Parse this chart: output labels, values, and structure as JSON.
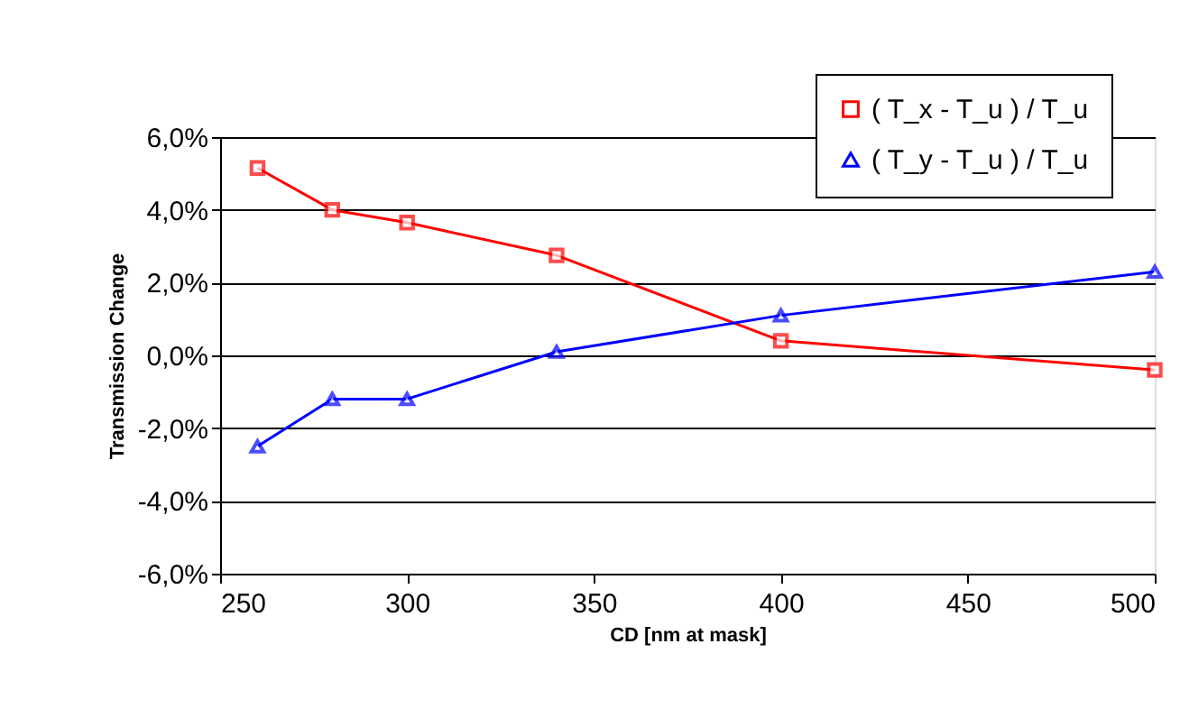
{
  "chart_data": {
    "type": "line",
    "xlabel": "CD [nm at mask]",
    "ylabel": "Transmission Change",
    "x": [
      260,
      280,
      300,
      340,
      400,
      500
    ],
    "series": [
      {
        "name": "( T_x - T_u ) / T_u",
        "color": "#ff0000",
        "marker": "square",
        "values": [
          5.15,
          4.0,
          3.65,
          2.75,
          0.4,
          -0.4
        ]
      },
      {
        "name": "( T_y - T_u ) / T_u",
        "color": "#0000ff",
        "marker": "triangle",
        "values": [
          -2.5,
          -1.2,
          -1.2,
          0.1,
          1.1,
          2.3
        ]
      }
    ],
    "xlim": [
      250,
      500
    ],
    "xticks": [
      250,
      300,
      350,
      400,
      450,
      500
    ],
    "ylim": [
      -6,
      6
    ],
    "yticks": [
      {
        "value": -6,
        "label": "-6,0%"
      },
      {
        "value": -4,
        "label": "-4,0%"
      },
      {
        "value": -2,
        "label": "-2,0%"
      },
      {
        "value": 0,
        "label": "0,0%"
      },
      {
        "value": 2,
        "label": "2,0%"
      },
      {
        "value": 4,
        "label": "4,0%"
      },
      {
        "value": 6,
        "label": "6,0%"
      }
    ],
    "grid": "y",
    "legend": "top right",
    "line_style": "solid"
  }
}
